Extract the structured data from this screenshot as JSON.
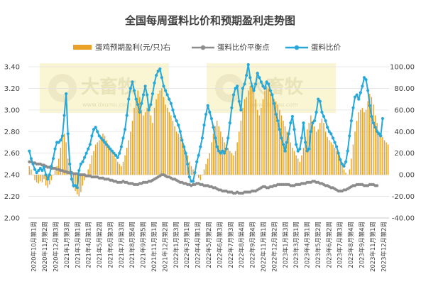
{
  "chart_data": {
    "type": "bar+line",
    "title": "全国每周蛋料比价和预期盈利走势图",
    "legend": [
      "蛋鸡预期盈利(元/只)右",
      "蛋料比价平衡点",
      "蛋料比价"
    ],
    "left_axis": {
      "min": 2.0,
      "max": 3.4,
      "step": 0.2,
      "ticks": [
        "2.00",
        "2.20",
        "2.40",
        "2.60",
        "2.80",
        "3.00",
        "3.20",
        "3.40"
      ]
    },
    "right_axis": {
      "min": -40,
      "max": 100,
      "step": 20,
      "ticks": [
        "-40.00",
        "-20.00",
        "0.00",
        "20.00",
        "40.00",
        "60.00",
        "80.00",
        "100.00"
      ]
    },
    "x_labels": [
      "2020年10月第1周",
      "2020年11月第2周",
      "2020年12月第3周",
      "2021年1月第3周",
      "2021年3月第1周",
      "2021年4月第1周",
      "2021年5月第2周",
      "2021年6月第3周",
      "2021年7月第3周",
      "2021年8月第4周",
      "2021年9月第5周",
      "2021年11月第1周",
      "2021年12月第2周",
      "2022年1月第3周",
      "2022年3月第1周",
      "2022年4月第1周",
      "2022年5月第2周",
      "2022年6月第3周",
      "2022年7月第3周",
      "2022年8月第4周",
      "2022年9月第4周",
      "2022年11月第1周",
      "2022年12月第2周",
      "2023年1月第3周",
      "2023年3月第1周",
      "2023年4月第1周",
      "2023年5月第2周",
      "2023年6月第2周",
      "2023年7月第3周",
      "2023年8月第4周",
      "2023年9月第4周",
      "2023年11月第1周",
      "2023年12月第2周"
    ],
    "series": [
      {
        "name": "蛋鸡预期盈利(元/只)右",
        "axis": "right",
        "color": "#e9a227",
        "values": [
          8,
          5,
          0,
          -5,
          -7,
          -8,
          -6,
          -7,
          -4,
          -10,
          -12,
          -9,
          -5,
          0,
          4,
          8,
          15,
          25,
          35,
          38,
          30,
          15,
          5,
          -5,
          -12,
          -15,
          -18,
          -20,
          -16,
          -10,
          -5,
          0,
          5,
          10,
          18,
          22,
          28,
          30,
          32,
          35,
          38,
          36,
          32,
          28,
          25,
          22,
          18,
          15,
          12,
          10,
          8,
          12,
          18,
          25,
          32,
          40,
          50,
          62,
          70,
          78,
          72,
          60,
          55,
          58,
          62,
          65,
          55,
          48,
          62,
          70,
          75,
          78,
          80,
          72,
          65,
          62,
          58,
          55,
          50,
          45,
          40,
          38,
          35,
          30,
          28,
          22,
          18,
          12,
          8,
          5,
          2,
          0,
          -3,
          -5,
          0,
          5,
          10,
          15,
          20,
          30,
          38,
          45,
          50,
          45,
          40,
          35,
          30,
          28,
          25,
          22,
          20,
          18,
          22,
          30,
          40,
          50,
          62,
          70,
          72,
          78,
          82,
          85,
          80,
          70,
          60,
          55,
          62,
          70,
          78,
          82,
          80,
          75,
          72,
          70,
          68,
          65,
          60,
          55,
          50,
          45,
          40,
          35,
          30,
          25,
          22,
          18,
          15,
          12,
          18,
          25,
          35,
          42,
          48,
          55,
          50,
          45,
          40,
          42,
          48,
          52,
          48,
          40,
          35,
          32,
          30,
          28,
          25,
          22,
          20,
          15,
          10,
          5,
          2,
          0,
          5,
          15,
          28,
          40,
          50,
          58,
          60,
          62,
          58,
          60,
          68,
          75,
          72,
          65,
          55,
          48,
          40,
          38,
          35,
          32,
          30,
          28
        ]
      },
      {
        "name": "蛋料比价平衡点",
        "axis": "left",
        "color": "#8c8c8c",
        "values": [
          2.52,
          2.52,
          2.51,
          2.51,
          2.5,
          2.5,
          2.5,
          2.49,
          2.49,
          2.48,
          2.47,
          2.47,
          2.46,
          2.46,
          2.46,
          2.45,
          2.45,
          2.44,
          2.44,
          2.43,
          2.43,
          2.42,
          2.42,
          2.42,
          2.41,
          2.41,
          2.41,
          2.4,
          2.4,
          2.4,
          2.4,
          2.39,
          2.39,
          2.39,
          2.38,
          2.38,
          2.38,
          2.38,
          2.37,
          2.37,
          2.37,
          2.36,
          2.36,
          2.36,
          2.35,
          2.35,
          2.34,
          2.34,
          2.33,
          2.33,
          2.33,
          2.34,
          2.33,
          2.33,
          2.32,
          2.32,
          2.32,
          2.31,
          2.31,
          2.31,
          2.32,
          2.32,
          2.33,
          2.33,
          2.33,
          2.34,
          2.34,
          2.35,
          2.36,
          2.37,
          2.38,
          2.39,
          2.4,
          2.4,
          2.39,
          2.38,
          2.38,
          2.37,
          2.36,
          2.36,
          2.35,
          2.34,
          2.33,
          2.33,
          2.32,
          2.32,
          2.31,
          2.31,
          2.3,
          2.31,
          2.31,
          2.32,
          2.32,
          2.31,
          2.31,
          2.3,
          2.3,
          2.3,
          2.29,
          2.29,
          2.28,
          2.28,
          2.27,
          2.26,
          2.26,
          2.25,
          2.25,
          2.25,
          2.24,
          2.24,
          2.24,
          2.23,
          2.23,
          2.24,
          2.23,
          2.23,
          2.23,
          2.24,
          2.24,
          2.24,
          2.24,
          2.25,
          2.25,
          2.25,
          2.26,
          2.27,
          2.28,
          2.29,
          2.29,
          2.28,
          2.28,
          2.29,
          2.29,
          2.3,
          2.3,
          2.31,
          2.31,
          2.31,
          2.31,
          2.31,
          2.31,
          2.31,
          2.3,
          2.3,
          2.3,
          2.31,
          2.31,
          2.31,
          2.32,
          2.32,
          2.32,
          2.33,
          2.33,
          2.33,
          2.34,
          2.34,
          2.33,
          2.33,
          2.32,
          2.32,
          2.31,
          2.3,
          2.3,
          2.29,
          2.28,
          2.28,
          2.27,
          2.26,
          2.25,
          2.25,
          2.25,
          2.26,
          2.26,
          2.27,
          2.28,
          2.29,
          2.3,
          2.3,
          2.31,
          2.31,
          2.31,
          2.31,
          2.3,
          2.3,
          2.3,
          2.31,
          2.31,
          2.31,
          2.3,
          2.3
        ]
      },
      {
        "name": "蛋料比价",
        "axis": "left",
        "color": "#27a8d8",
        "values": [
          2.62,
          2.55,
          2.5,
          2.45,
          2.42,
          2.44,
          2.46,
          2.44,
          2.47,
          2.4,
          2.36,
          2.4,
          2.48,
          2.55,
          2.64,
          2.7,
          2.7,
          2.72,
          2.76,
          2.95,
          3.15,
          2.78,
          2.5,
          2.36,
          2.3,
          2.3,
          2.28,
          2.44,
          2.5,
          2.52,
          2.56,
          2.6,
          2.64,
          2.68,
          2.76,
          2.82,
          2.84,
          2.8,
          2.76,
          2.74,
          2.72,
          2.7,
          2.68,
          2.66,
          2.64,
          2.62,
          2.6,
          2.58,
          2.56,
          2.6,
          2.66,
          2.74,
          2.82,
          2.95,
          3.1,
          3.2,
          3.26,
          3.18,
          3.1,
          3.05,
          2.98,
          3.06,
          3.14,
          3.22,
          3.14,
          3.0,
          3.05,
          3.15,
          3.25,
          3.32,
          3.36,
          3.38,
          3.3,
          3.22,
          3.18,
          3.14,
          3.1,
          3.06,
          3.0,
          2.94,
          2.9,
          2.86,
          2.8,
          2.72,
          2.66,
          2.6,
          2.5,
          2.38,
          2.34,
          2.34,
          2.42,
          2.52,
          2.58,
          2.66,
          2.74,
          2.86,
          2.96,
          3.04,
          2.98,
          2.92,
          2.84,
          2.74,
          2.66,
          2.62,
          2.6,
          2.62,
          2.6,
          2.64,
          2.74,
          2.88,
          3.02,
          3.14,
          3.2,
          3.22,
          3.08,
          3.0,
          3.2,
          3.24,
          3.32,
          3.42,
          3.3,
          3.22,
          3.18,
          3.24,
          3.34,
          3.3,
          3.26,
          3.22,
          3.2,
          3.26,
          3.24,
          3.18,
          3.14,
          3.06,
          2.96,
          2.9,
          2.82,
          2.74,
          2.68,
          2.62,
          2.7,
          2.78,
          2.88,
          2.94,
          2.82,
          2.68,
          2.62,
          2.64,
          2.74,
          2.88,
          2.7,
          2.62,
          2.64,
          2.8,
          2.88,
          2.9,
          2.98,
          3.1,
          3.08,
          2.98,
          2.94,
          2.9,
          2.84,
          2.8,
          2.78,
          2.74,
          2.7,
          2.66,
          2.6,
          2.54,
          2.5,
          2.48,
          2.52,
          2.62,
          2.76,
          2.9,
          3.02,
          3.12,
          3.14,
          3.1,
          3.16,
          3.22,
          3.3,
          3.28,
          3.18,
          3.04,
          2.94,
          2.88,
          2.84,
          2.8,
          2.78,
          2.76,
          2.92
        ]
      }
    ]
  }
}
